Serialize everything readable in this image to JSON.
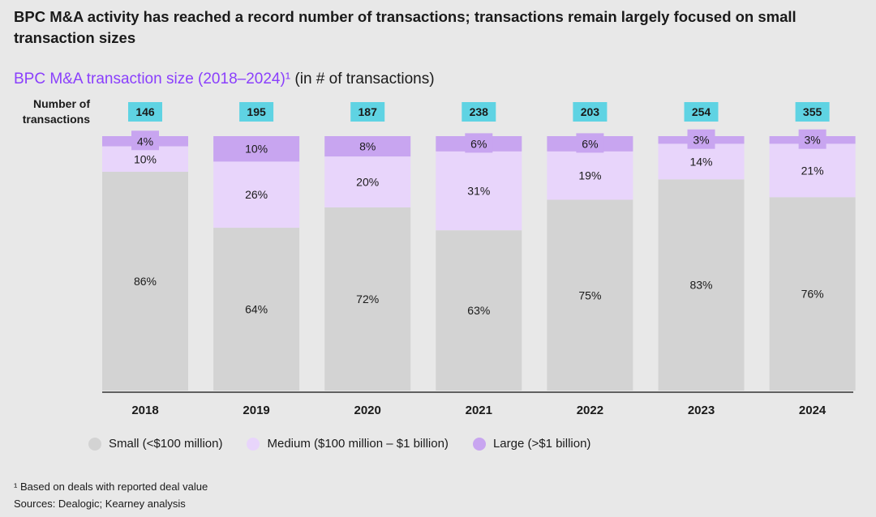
{
  "headline": "BPC M&A activity has reached a record number of transactions; transactions remain largely focused on small transaction sizes",
  "subtitle": {
    "accent_text": "BPC M&A transaction size (2018–2024)¹",
    "rest_text": " (in # of transactions)"
  },
  "chart_data": {
    "type": "bar",
    "stacked": "percent",
    "ylabel": "Number of transactions",
    "categories": [
      "2018",
      "2019",
      "2020",
      "2021",
      "2022",
      "2023",
      "2024"
    ],
    "totals": [
      146,
      195,
      187,
      238,
      203,
      254,
      355
    ],
    "series": [
      {
        "name": "Small (<$100 million)",
        "color": "#d3d3d3",
        "values": [
          86,
          64,
          72,
          63,
          75,
          83,
          76
        ],
        "labels": [
          "86%",
          "64%",
          "72%",
          "63%",
          "75%",
          "83%",
          "76%"
        ]
      },
      {
        "name": "Medium ($100 million – $1 billion)",
        "color": "#e8d5fb",
        "values": [
          10,
          26,
          20,
          31,
          19,
          14,
          21
        ],
        "labels": [
          "10%",
          "26%",
          "20%",
          "31%",
          "19%",
          "14%",
          "21%"
        ]
      },
      {
        "name": "Large (>$1 billion)",
        "color": "#c8a5f0",
        "values": [
          4,
          10,
          8,
          6,
          6,
          3,
          3
        ],
        "labels": [
          "4%",
          "10%",
          "8%",
          "6%",
          "6%",
          "3%",
          "3%"
        ]
      }
    ],
    "total_badge_color": "#5fd3e3",
    "ylim": [
      0,
      100
    ],
    "grid": false,
    "legend_position": "bottom"
  },
  "footnotes": {
    "note": "¹ Based on deals with reported deal value",
    "sources": "Sources: Dealogic; Kearney analysis"
  }
}
